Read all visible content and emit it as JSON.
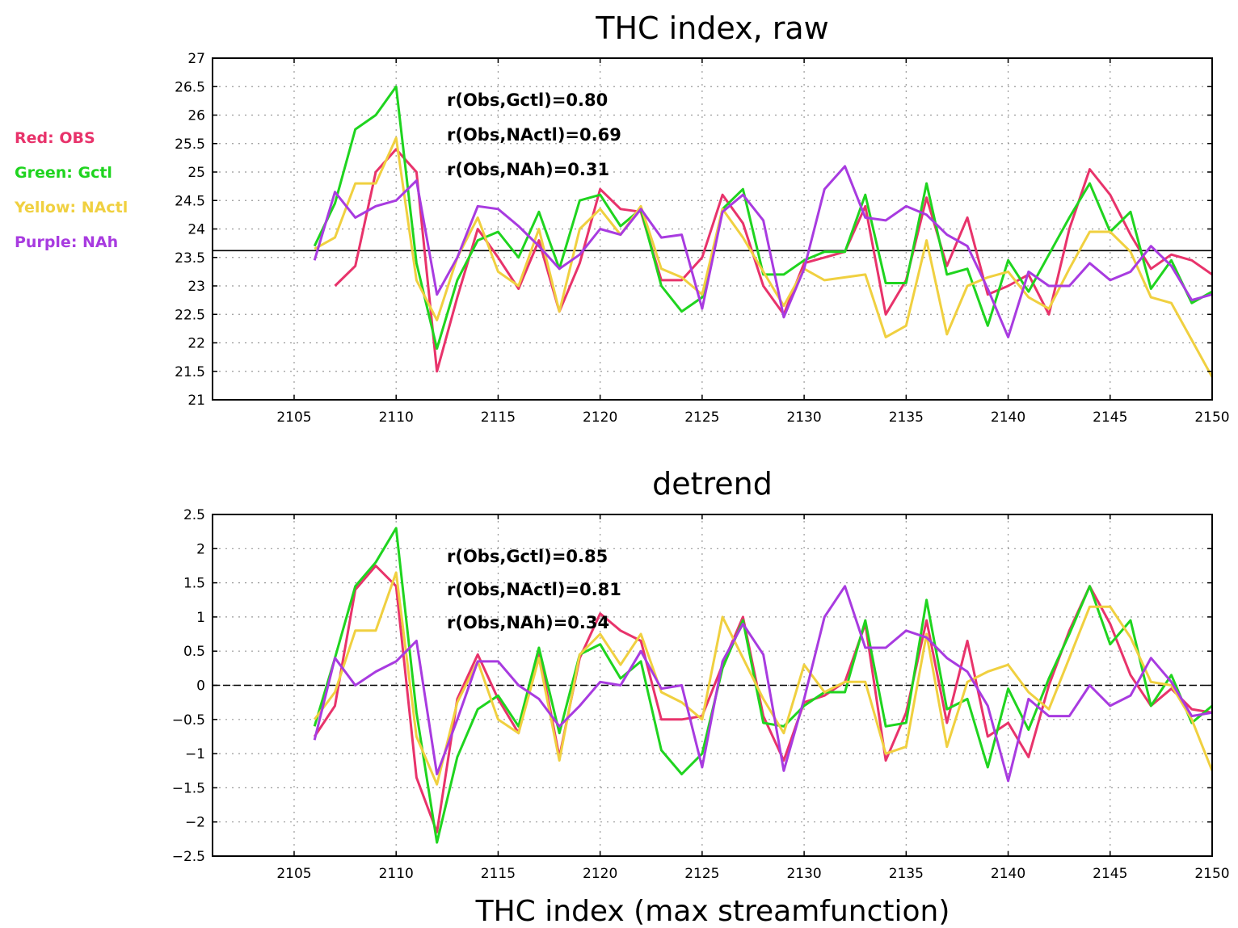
{
  "legend": [
    {
      "label": "Red: OBS",
      "color": "#e8336b"
    },
    {
      "label": "Green: Gctl",
      "color": "#1fd41f"
    },
    {
      "label": "Yellow: NActl",
      "color": "#f0d040"
    },
    {
      "label": "Purple: NAh",
      "color": "#a83be0"
    }
  ],
  "xlabel": "THC index (max streamfunction)",
  "chart_data": [
    {
      "type": "line",
      "title": "THC index, raw",
      "xlim": [
        2101,
        2150
      ],
      "ylim": [
        21,
        27
      ],
      "xticks": [
        2105,
        2110,
        2115,
        2120,
        2125,
        2130,
        2135,
        2140,
        2145,
        2150
      ],
      "yticks": [
        21,
        21.5,
        22,
        22.5,
        23,
        23.5,
        24,
        24.5,
        25,
        25.5,
        26,
        26.5,
        27
      ],
      "reference_line": {
        "y": 23.62,
        "style": "solid"
      },
      "grid": true,
      "annotations": [
        "r(Obs,Gctl)=0.80",
        "r(Obs,NActl)=0.69",
        "r(Obs,NAh)=0.31"
      ],
      "series": [
        {
          "name": "OBS",
          "color": "#e8336b",
          "x": [
            2107,
            2108,
            2109,
            2110,
            2111,
            2112,
            2113,
            2114,
            2115,
            2116,
            2117,
            2118,
            2119,
            2120,
            2121,
            2122,
            2123,
            2124,
            2125,
            2126,
            2127,
            2128,
            2129,
            2130,
            2131,
            2132,
            2133,
            2134,
            2135,
            2136,
            2137,
            2138,
            2139,
            2140,
            2141,
            2142,
            2143,
            2144,
            2145,
            2146,
            2147,
            2148,
            2149,
            2150
          ],
          "y": [
            23.0,
            23.35,
            25.0,
            25.4,
            25.0,
            21.5,
            22.8,
            24.0,
            23.5,
            22.95,
            23.8,
            22.55,
            23.4,
            24.7,
            24.35,
            24.3,
            23.1,
            23.1,
            23.5,
            24.6,
            24.1,
            23.0,
            22.5,
            23.4,
            23.5,
            23.6,
            24.4,
            22.5,
            23.1,
            24.55,
            23.35,
            24.2,
            22.85,
            23.0,
            23.2,
            22.5,
            24.0,
            25.05,
            24.6,
            23.9,
            23.3,
            23.55,
            23.45,
            23.2
          ]
        },
        {
          "name": "Gctl",
          "color": "#1fd41f",
          "x": [
            2106,
            2107,
            2108,
            2109,
            2110,
            2111,
            2112,
            2113,
            2114,
            2115,
            2116,
            2117,
            2118,
            2119,
            2120,
            2121,
            2122,
            2123,
            2124,
            2125,
            2126,
            2127,
            2128,
            2129,
            2130,
            2131,
            2132,
            2133,
            2134,
            2135,
            2136,
            2137,
            2138,
            2139,
            2140,
            2141,
            2142,
            2143,
            2144,
            2145,
            2146,
            2147,
            2148,
            2149,
            2150
          ],
          "y": [
            23.7,
            24.45,
            25.75,
            26.0,
            26.5,
            23.4,
            21.9,
            23.1,
            23.8,
            23.95,
            23.5,
            24.3,
            23.3,
            24.5,
            24.6,
            24.05,
            24.35,
            23.0,
            22.55,
            22.8,
            24.35,
            24.7,
            23.2,
            23.2,
            23.45,
            23.6,
            23.6,
            24.6,
            23.05,
            23.05,
            24.8,
            23.2,
            23.3,
            22.3,
            23.45,
            22.9,
            23.55,
            24.2,
            24.8,
            23.95,
            24.3,
            22.95,
            23.45,
            22.7,
            22.9
          ]
        },
        {
          "name": "NActl",
          "color": "#f0d040",
          "x": [
            2106,
            2107,
            2108,
            2109,
            2110,
            2111,
            2112,
            2113,
            2114,
            2115,
            2116,
            2117,
            2118,
            2119,
            2120,
            2121,
            2122,
            2123,
            2124,
            2125,
            2126,
            2127,
            2128,
            2129,
            2130,
            2131,
            2132,
            2133,
            2134,
            2135,
            2136,
            2137,
            2138,
            2139,
            2140,
            2141,
            2142,
            2143,
            2144,
            2145,
            2146,
            2147,
            2148,
            2149,
            2150
          ],
          "y": [
            23.65,
            23.85,
            24.8,
            24.8,
            25.6,
            23.1,
            22.4,
            23.5,
            24.2,
            23.25,
            23.0,
            24.0,
            22.55,
            24.0,
            24.35,
            23.9,
            24.4,
            23.3,
            23.15,
            22.85,
            24.35,
            23.85,
            23.25,
            22.65,
            23.3,
            23.1,
            23.15,
            23.2,
            22.1,
            22.3,
            23.8,
            22.15,
            23.0,
            23.15,
            23.25,
            22.8,
            22.6,
            23.3,
            23.95,
            23.95,
            23.6,
            22.8,
            22.7,
            22.05,
            21.4
          ]
        },
        {
          "name": "NAh",
          "color": "#a83be0",
          "x": [
            2106,
            2107,
            2108,
            2109,
            2110,
            2111,
            2112,
            2113,
            2114,
            2115,
            2116,
            2117,
            2118,
            2119,
            2120,
            2121,
            2122,
            2123,
            2124,
            2125,
            2126,
            2127,
            2128,
            2129,
            2130,
            2131,
            2132,
            2133,
            2134,
            2135,
            2136,
            2137,
            2138,
            2139,
            2140,
            2141,
            2142,
            2143,
            2144,
            2145,
            2146,
            2147,
            2148,
            2149,
            2150
          ],
          "y": [
            23.45,
            24.65,
            24.2,
            24.4,
            24.5,
            24.85,
            22.85,
            23.5,
            24.4,
            24.35,
            24.05,
            23.7,
            23.3,
            23.55,
            24.0,
            23.9,
            24.35,
            23.85,
            23.9,
            22.6,
            24.3,
            24.6,
            24.15,
            22.45,
            23.3,
            24.7,
            25.1,
            24.2,
            24.15,
            24.4,
            24.25,
            23.9,
            23.7,
            22.95,
            22.1,
            23.25,
            23.0,
            23.0,
            23.4,
            23.1,
            23.25,
            23.7,
            23.35,
            22.75,
            22.85
          ]
        }
      ]
    },
    {
      "type": "line",
      "title": "detrend",
      "xlim": [
        2101,
        2150
      ],
      "ylim": [
        -2.5,
        2.5
      ],
      "xticks": [
        2105,
        2110,
        2115,
        2120,
        2125,
        2130,
        2135,
        2140,
        2145,
        2150
      ],
      "yticks": [
        -2.5,
        -2,
        -1.5,
        -1,
        -0.5,
        0,
        0.5,
        1,
        1.5,
        2,
        2.5
      ],
      "reference_line": {
        "y": 0,
        "style": "dashed"
      },
      "grid": true,
      "annotations": [
        "r(Obs,Gctl)=0.85",
        "r(Obs,NActl)=0.81",
        "r(Obs,NAh)=0.34"
      ],
      "series": [
        {
          "name": "OBS",
          "color": "#e8336b",
          "x": [
            2106,
            2107,
            2108,
            2109,
            2110,
            2111,
            2112,
            2113,
            2114,
            2115,
            2116,
            2117,
            2118,
            2119,
            2120,
            2121,
            2122,
            2123,
            2124,
            2125,
            2126,
            2127,
            2128,
            2129,
            2130,
            2131,
            2132,
            2133,
            2134,
            2135,
            2136,
            2137,
            2138,
            2139,
            2140,
            2141,
            2142,
            2143,
            2144,
            2145,
            2146,
            2147,
            2148,
            2149,
            2150
          ],
          "y": [
            -0.75,
            -0.3,
            1.4,
            1.75,
            1.45,
            -1.35,
            -2.15,
            -0.2,
            0.45,
            -0.2,
            -0.7,
            0.5,
            -1.05,
            0.4,
            1.05,
            0.8,
            0.65,
            -0.5,
            -0.5,
            -0.45,
            0.3,
            1.0,
            -0.45,
            -1.1,
            -0.25,
            -0.15,
            0.05,
            0.9,
            -1.1,
            -0.4,
            0.95,
            -0.55,
            0.65,
            -0.75,
            -0.55,
            -1.05,
            0.0,
            0.8,
            1.45,
            0.9,
            0.15,
            -0.3,
            -0.05,
            -0.35,
            -0.4
          ]
        },
        {
          "name": "Gctl",
          "color": "#1fd41f",
          "x": [
            2106,
            2107,
            2108,
            2109,
            2110,
            2111,
            2112,
            2113,
            2114,
            2115,
            2116,
            2117,
            2118,
            2119,
            2120,
            2121,
            2122,
            2123,
            2124,
            2125,
            2126,
            2127,
            2128,
            2129,
            2130,
            2131,
            2132,
            2133,
            2134,
            2135,
            2136,
            2137,
            2138,
            2139,
            2140,
            2141,
            2142,
            2143,
            2144,
            2145,
            2146,
            2147,
            2148,
            2149,
            2150
          ],
          "y": [
            -0.6,
            0.4,
            1.45,
            1.8,
            2.3,
            -0.4,
            -2.3,
            -1.05,
            -0.35,
            -0.15,
            -0.6,
            0.55,
            -0.7,
            0.45,
            0.6,
            0.1,
            0.35,
            -0.95,
            -1.3,
            -1.0,
            0.25,
            0.95,
            -0.55,
            -0.6,
            -0.3,
            -0.1,
            -0.1,
            0.95,
            -0.6,
            -0.55,
            1.25,
            -0.35,
            -0.2,
            -1.2,
            -0.05,
            -0.65,
            0.1,
            0.75,
            1.45,
            0.6,
            0.95,
            -0.3,
            0.15,
            -0.55,
            -0.3
          ]
        },
        {
          "name": "NActl",
          "color": "#f0d040",
          "x": [
            2106,
            2107,
            2108,
            2109,
            2110,
            2111,
            2112,
            2113,
            2114,
            2115,
            2116,
            2117,
            2118,
            2119,
            2120,
            2121,
            2122,
            2123,
            2124,
            2125,
            2126,
            2127,
            2128,
            2129,
            2130,
            2131,
            2132,
            2133,
            2134,
            2135,
            2136,
            2137,
            2138,
            2139,
            2140,
            2141,
            2142,
            2143,
            2144,
            2145,
            2146,
            2147,
            2148,
            2149,
            2150
          ],
          "y": [
            -0.5,
            -0.1,
            0.8,
            0.8,
            1.65,
            -0.75,
            -1.45,
            -0.25,
            0.35,
            -0.5,
            -0.7,
            0.4,
            -1.1,
            0.45,
            0.75,
            0.3,
            0.75,
            -0.1,
            -0.25,
            -0.5,
            1.0,
            0.4,
            -0.2,
            -0.7,
            0.3,
            -0.1,
            0.05,
            0.05,
            -1.0,
            -0.9,
            0.75,
            -0.9,
            0.05,
            0.2,
            0.3,
            -0.1,
            -0.35,
            0.4,
            1.15,
            1.15,
            0.7,
            0.05,
            0.0,
            -0.5,
            -1.25
          ]
        },
        {
          "name": "NAh",
          "color": "#a83be0",
          "x": [
            2106,
            2107,
            2108,
            2109,
            2110,
            2111,
            2112,
            2113,
            2114,
            2115,
            2116,
            2117,
            2118,
            2119,
            2120,
            2121,
            2122,
            2123,
            2124,
            2125,
            2126,
            2127,
            2128,
            2129,
            2130,
            2131,
            2132,
            2133,
            2134,
            2135,
            2136,
            2137,
            2138,
            2139,
            2140,
            2141,
            2142,
            2143,
            2144,
            2145,
            2146,
            2147,
            2148,
            2149,
            2150
          ],
          "y": [
            -0.8,
            0.4,
            0.0,
            0.2,
            0.35,
            0.65,
            -1.3,
            -0.5,
            0.35,
            0.35,
            0.0,
            -0.2,
            -0.6,
            -0.3,
            0.05,
            0.0,
            0.5,
            -0.05,
            0.0,
            -1.2,
            0.35,
            0.9,
            0.45,
            -1.25,
            -0.2,
            1.0,
            1.45,
            0.55,
            0.55,
            0.8,
            0.7,
            0.4,
            0.2,
            -0.3,
            -1.4,
            -0.2,
            -0.45,
            -0.45,
            0.0,
            -0.3,
            -0.15,
            0.4,
            0.05,
            -0.45,
            -0.4
          ]
        }
      ]
    }
  ]
}
